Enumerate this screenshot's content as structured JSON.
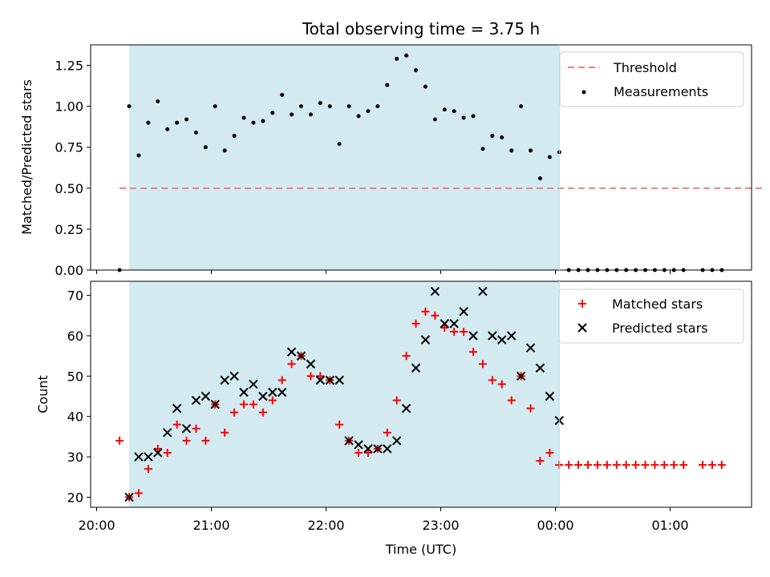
{
  "chart_data": [
    {
      "type": "scatter",
      "title": "Total observing time = 3.75 h",
      "xlabel": "",
      "ylabel": "Matched/Predicted stars",
      "ylim": [
        0,
        1.375
      ],
      "yticks": [
        "0.00",
        "0.25",
        "0.50",
        "0.75",
        "1.00",
        "1.25"
      ],
      "shaded_interval": [
        "20:17",
        "00:02"
      ],
      "shade_color": "#d3eaf1",
      "legend_position": "upper right",
      "threshold": {
        "name": "Threshold",
        "value": 0.5,
        "x_range": [
          "20:12",
          "01:48"
        ],
        "color": "#f08080"
      },
      "series": [
        {
          "name": "Measurements",
          "color": "#000000",
          "points": [
            [
              "20:12",
              0.0
            ],
            [
              "20:17",
              1.0
            ],
            [
              "20:22",
              0.7
            ],
            [
              "20:27",
              0.9
            ],
            [
              "20:32",
              1.03
            ],
            [
              "20:37",
              0.86
            ],
            [
              "20:42",
              0.9
            ],
            [
              "20:47",
              0.92
            ],
            [
              "20:52",
              0.84
            ],
            [
              "20:57",
              0.75
            ],
            [
              "21:02",
              1.0
            ],
            [
              "21:07",
              0.73
            ],
            [
              "21:12",
              0.82
            ],
            [
              "21:17",
              0.93
            ],
            [
              "21:22",
              0.9
            ],
            [
              "21:27",
              0.91
            ],
            [
              "21:32",
              0.96
            ],
            [
              "21:37",
              1.07
            ],
            [
              "21:42",
              0.95
            ],
            [
              "21:47",
              1.0
            ],
            [
              "21:52",
              0.95
            ],
            [
              "21:57",
              1.02
            ],
            [
              "22:02",
              1.0
            ],
            [
              "22:07",
              0.77
            ],
            [
              "22:12",
              1.0
            ],
            [
              "22:17",
              0.94
            ],
            [
              "22:22",
              0.97
            ],
            [
              "22:27",
              1.0
            ],
            [
              "22:32",
              1.13
            ],
            [
              "22:37",
              1.29
            ],
            [
              "22:42",
              1.31
            ],
            [
              "22:47",
              1.22
            ],
            [
              "22:52",
              1.12
            ],
            [
              "22:57",
              0.92
            ],
            [
              "23:02",
              0.98
            ],
            [
              "23:07",
              0.97
            ],
            [
              "23:12",
              0.93
            ],
            [
              "23:17",
              0.94
            ],
            [
              "23:22",
              0.74
            ],
            [
              "23:27",
              0.82
            ],
            [
              "23:32",
              0.81
            ],
            [
              "23:37",
              0.73
            ],
            [
              "23:42",
              1.0
            ],
            [
              "23:47",
              0.73
            ],
            [
              "23:52",
              0.56
            ],
            [
              "23:57",
              0.69
            ],
            [
              "00:02",
              0.72
            ],
            [
              "00:07",
              0.0
            ],
            [
              "00:12",
              0.0
            ],
            [
              "00:17",
              0.0
            ],
            [
              "00:22",
              0.0
            ],
            [
              "00:27",
              0.0
            ],
            [
              "00:32",
              0.0
            ],
            [
              "00:37",
              0.0
            ],
            [
              "00:42",
              0.0
            ],
            [
              "00:47",
              0.0
            ],
            [
              "00:52",
              0.0
            ],
            [
              "00:57",
              0.0
            ],
            [
              "01:02",
              0.0
            ],
            [
              "01:07",
              0.0
            ],
            [
              "01:17",
              0.0
            ],
            [
              "01:22",
              0.0
            ],
            [
              "01:27",
              0.0
            ]
          ]
        }
      ]
    },
    {
      "type": "scatter",
      "title": "",
      "xlabel": "Time (UTC)",
      "ylabel": "Count",
      "ylim": [
        17.5,
        73.5
      ],
      "yticks": [
        "20",
        "30",
        "40",
        "50",
        "60",
        "70"
      ],
      "xticks": [
        "20:00",
        "21:00",
        "22:00",
        "23:00",
        "00:00",
        "01:00"
      ],
      "shaded_interval": [
        "20:17",
        "00:02"
      ],
      "shade_color": "#d3eaf1",
      "legend_position": "upper right",
      "series": [
        {
          "name": "Matched stars",
          "marker": "plus",
          "color": "#ff0000",
          "points": [
            [
              "20:12",
              34
            ],
            [
              "20:17",
              20
            ],
            [
              "20:22",
              21
            ],
            [
              "20:27",
              27
            ],
            [
              "20:32",
              32
            ],
            [
              "20:37",
              31
            ],
            [
              "20:42",
              38
            ],
            [
              "20:47",
              34
            ],
            [
              "20:52",
              37
            ],
            [
              "20:57",
              34
            ],
            [
              "21:02",
              43
            ],
            [
              "21:07",
              36
            ],
            [
              "21:12",
              41
            ],
            [
              "21:17",
              43
            ],
            [
              "21:22",
              43
            ],
            [
              "21:27",
              41
            ],
            [
              "21:32",
              44
            ],
            [
              "21:37",
              49
            ],
            [
              "21:42",
              53
            ],
            [
              "21:47",
              55
            ],
            [
              "21:52",
              50
            ],
            [
              "21:57",
              50
            ],
            [
              "22:02",
              49
            ],
            [
              "22:07",
              38
            ],
            [
              "22:12",
              34
            ],
            [
              "22:17",
              31
            ],
            [
              "22:22",
              31
            ],
            [
              "22:27",
              32
            ],
            [
              "22:32",
              36
            ],
            [
              "22:37",
              44
            ],
            [
              "22:42",
              55
            ],
            [
              "22:47",
              63
            ],
            [
              "22:52",
              66
            ],
            [
              "22:57",
              65
            ],
            [
              "23:02",
              62
            ],
            [
              "23:07",
              61
            ],
            [
              "23:12",
              61
            ],
            [
              "23:17",
              56
            ],
            [
              "23:22",
              53
            ],
            [
              "23:27",
              49
            ],
            [
              "23:32",
              48
            ],
            [
              "23:37",
              44
            ],
            [
              "23:42",
              50
            ],
            [
              "23:47",
              42
            ],
            [
              "23:52",
              29
            ],
            [
              "23:57",
              31
            ],
            [
              "00:02",
              28
            ],
            [
              "00:07",
              28
            ],
            [
              "00:12",
              28
            ],
            [
              "00:17",
              28
            ],
            [
              "00:22",
              28
            ],
            [
              "00:27",
              28
            ],
            [
              "00:32",
              28
            ],
            [
              "00:37",
              28
            ],
            [
              "00:42",
              28
            ],
            [
              "00:47",
              28
            ],
            [
              "00:52",
              28
            ],
            [
              "00:57",
              28
            ],
            [
              "01:02",
              28
            ],
            [
              "01:07",
              28
            ],
            [
              "01:17",
              28
            ],
            [
              "01:22",
              28
            ],
            [
              "01:27",
              28
            ]
          ]
        },
        {
          "name": "Predicted stars",
          "marker": "cross",
          "color": "#000000",
          "points": [
            [
              "20:17",
              20
            ],
            [
              "20:22",
              30
            ],
            [
              "20:27",
              30
            ],
            [
              "20:32",
              31
            ],
            [
              "20:37",
              36
            ],
            [
              "20:42",
              42
            ],
            [
              "20:47",
              37
            ],
            [
              "20:52",
              44
            ],
            [
              "20:57",
              45
            ],
            [
              "21:02",
              43
            ],
            [
              "21:07",
              49
            ],
            [
              "21:12",
              50
            ],
            [
              "21:17",
              46
            ],
            [
              "21:22",
              48
            ],
            [
              "21:27",
              45
            ],
            [
              "21:32",
              46
            ],
            [
              "21:37",
              46
            ],
            [
              "21:42",
              56
            ],
            [
              "21:47",
              55
            ],
            [
              "21:52",
              53
            ],
            [
              "21:57",
              49
            ],
            [
              "22:02",
              49
            ],
            [
              "22:07",
              49
            ],
            [
              "22:12",
              34
            ],
            [
              "22:17",
              33
            ],
            [
              "22:22",
              32
            ],
            [
              "22:27",
              32
            ],
            [
              "22:32",
              32
            ],
            [
              "22:37",
              34
            ],
            [
              "22:42",
              42
            ],
            [
              "22:47",
              52
            ],
            [
              "22:52",
              59
            ],
            [
              "22:57",
              71
            ],
            [
              "23:02",
              63
            ],
            [
              "23:07",
              63
            ],
            [
              "23:12",
              66
            ],
            [
              "23:17",
              60
            ],
            [
              "23:22",
              71
            ],
            [
              "23:27",
              60
            ],
            [
              "23:32",
              59
            ],
            [
              "23:37",
              60
            ],
            [
              "23:42",
              50
            ],
            [
              "23:47",
              57
            ],
            [
              "23:52",
              52
            ],
            [
              "23:57",
              45
            ],
            [
              "00:02",
              39
            ]
          ]
        }
      ]
    }
  ]
}
